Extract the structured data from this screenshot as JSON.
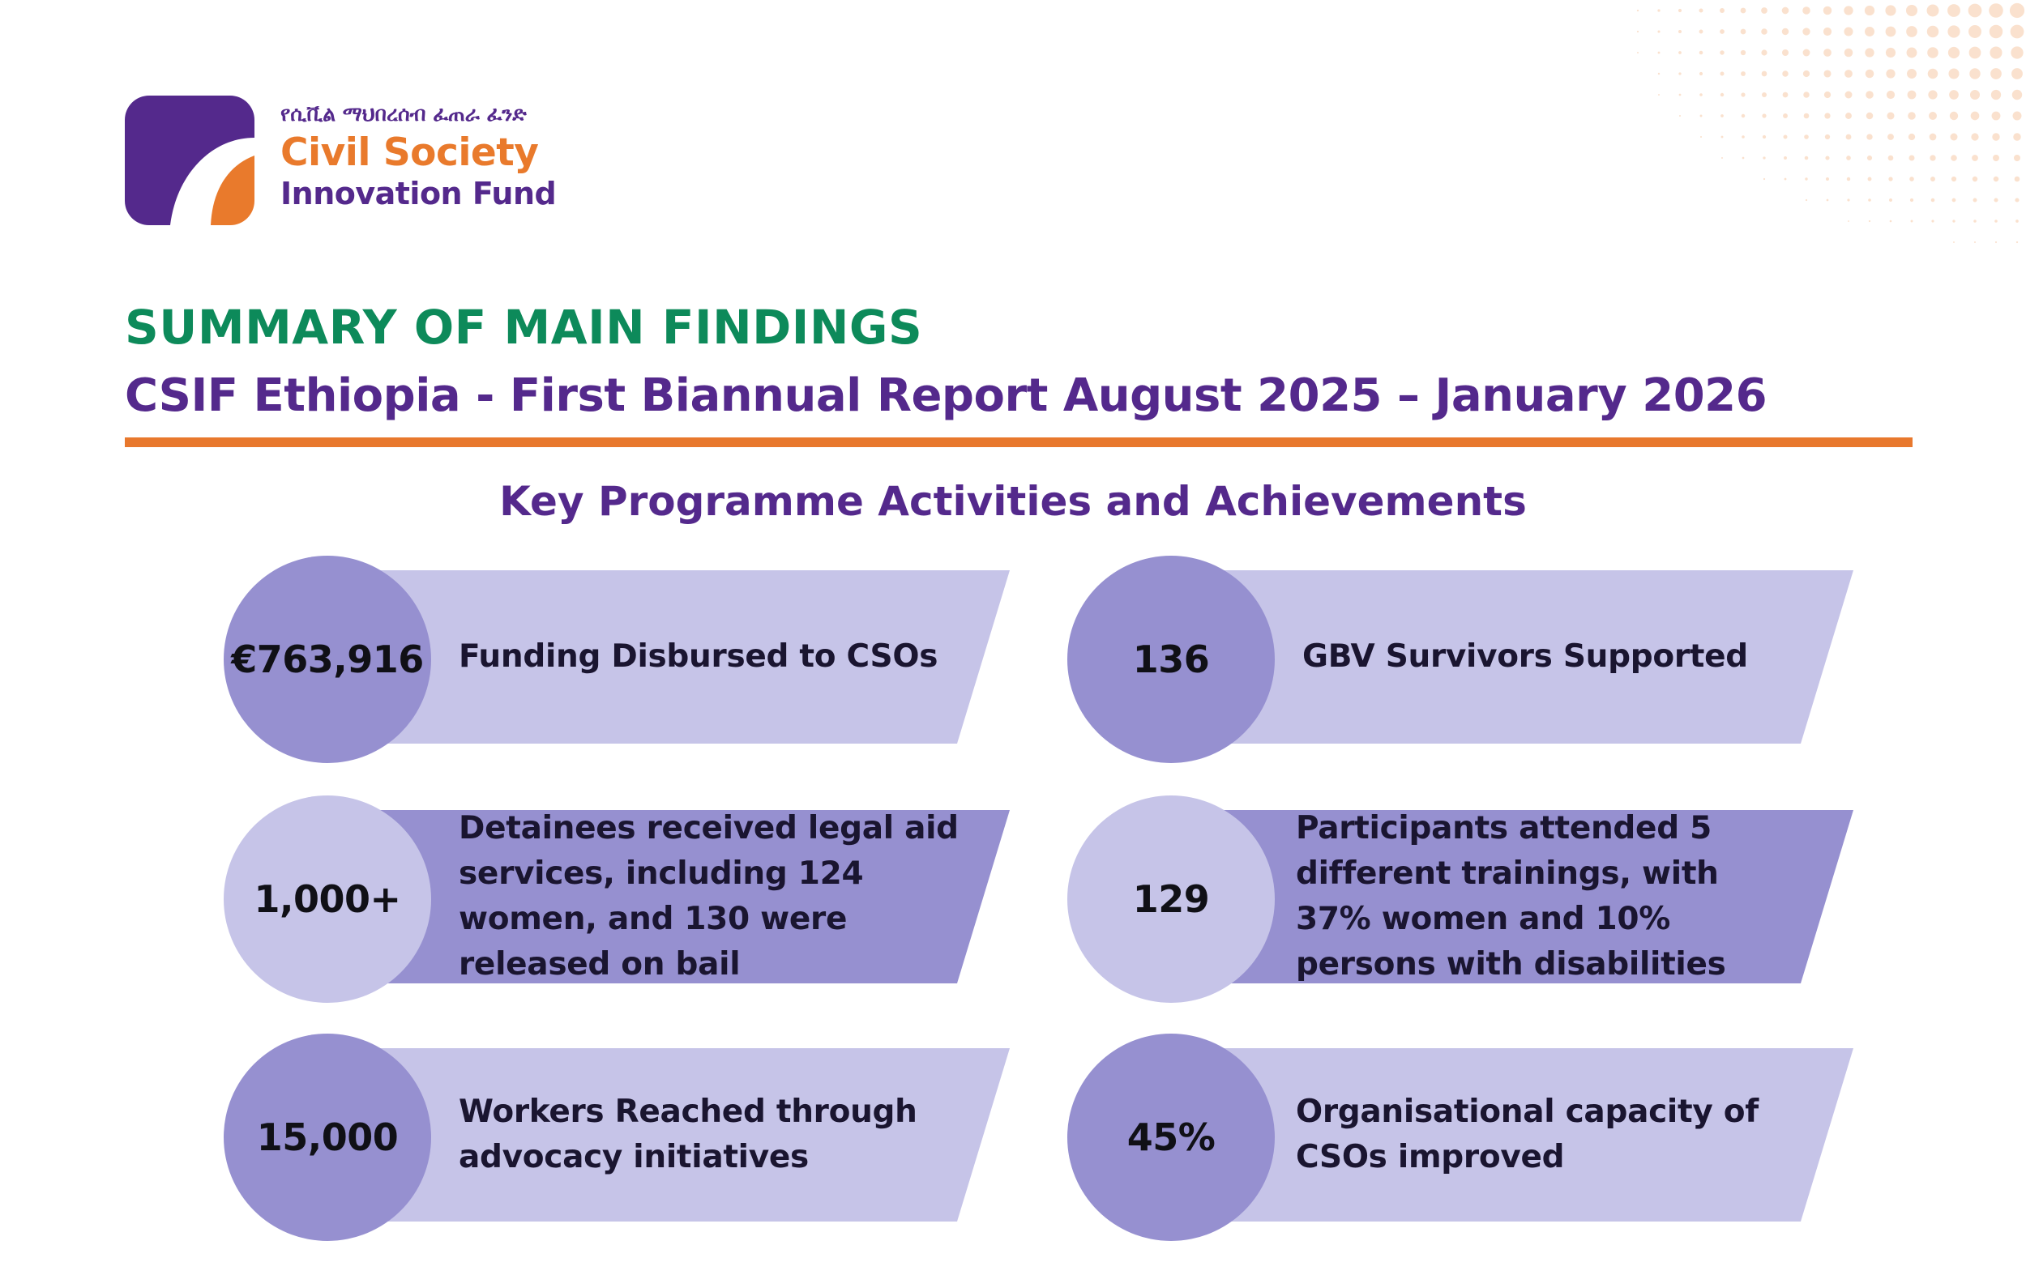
{
  "logo": {
    "amharic": "የሲቪል ማህበረሰብ ፈጠራ ፈንድ",
    "line1": "Civil Society",
    "line2": "Innovation Fund",
    "colors": {
      "purple": "#54298c",
      "orange": "#e97a2c"
    }
  },
  "header": {
    "title": "SUMMARY OF MAIN FINDINGS",
    "subtitle": "CSIF Ethiopia - First Biannual Report August 2025 – January 2026"
  },
  "section": {
    "title": "Key Programme Activities and Achievements"
  },
  "cards": [
    {
      "metric": "€763,916",
      "description": "Funding Disbursed to CSOs"
    },
    {
      "metric": "136",
      "description": "GBV Survivors Supported"
    },
    {
      "metric": "1,000+",
      "description": "Detainees received legal aid services, including 124 women, and 130 were released on bail"
    },
    {
      "metric": "129",
      "description": "Participants attended 5 different trainings, with 37% women and 10% persons with disabilities"
    },
    {
      "metric": "15,000",
      "description": "Workers Reached through advocacy initiatives"
    },
    {
      "metric": "45%",
      "description": "Organisational capacity of CSOs improved"
    }
  ],
  "colors": {
    "title_green": "#0d8a5a",
    "accent_purple": "#54298c",
    "rule_orange": "#e8782d",
    "light_lavender": "#c6c4e8",
    "mid_lavender": "#9690d0"
  }
}
